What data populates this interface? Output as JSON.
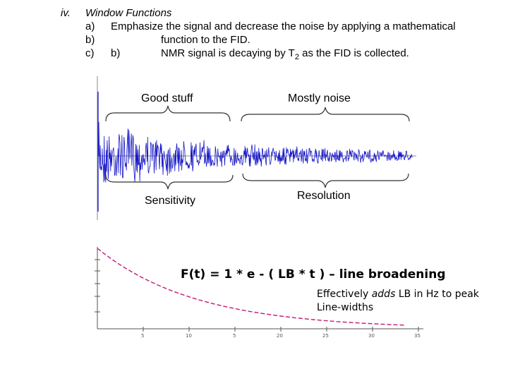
{
  "header": {
    "numeral": "iv.",
    "title": "Window Functions",
    "items": [
      {
        "marker": "a)",
        "text": "Emphasize the signal and decrease the noise by applying a mathematical"
      },
      {
        "marker": "b)",
        "text": "function to the FID."
      },
      {
        "marker": "c)",
        "sub_marker": "b)",
        "text_before": "NMR signal is decaying by T",
        "subscript": "2",
        "text_after": " as the FID is collected."
      }
    ]
  },
  "fid_labels": {
    "good": "Good stuff",
    "noise": "Mostly noise",
    "sensitivity": "Sensitivity",
    "resolution": "Resolution"
  },
  "equation": "F(t) = 1 * e - ( LB * t ) – line broadening",
  "note": {
    "pre": "Effectively ",
    "emph": "adds",
    "post": " LB in Hz to peak",
    "line2": "Line-widths"
  },
  "colors": {
    "fid": "#1515c8",
    "decay": "#c0197a",
    "axis": "#666666"
  }
}
